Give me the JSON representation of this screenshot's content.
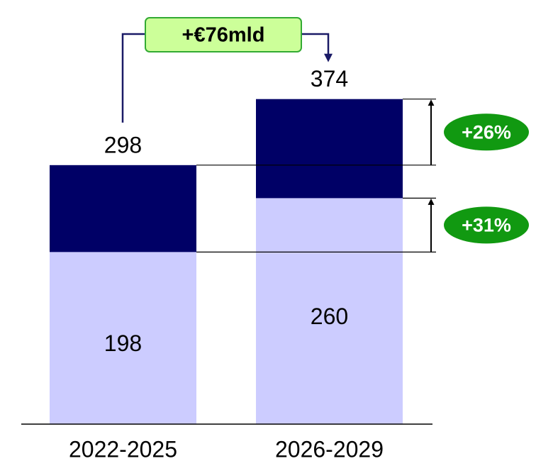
{
  "chart_data": {
    "type": "stacked-bar",
    "categories": [
      "2022-2025",
      "2026-2029"
    ],
    "series": [
      {
        "color": "#ccccff",
        "values": [
          198,
          260
        ]
      },
      {
        "color": "#000066",
        "values": [
          100,
          114
        ]
      }
    ],
    "totals": [
      298,
      374
    ],
    "ylim": [
      0,
      488
    ],
    "annotations": {
      "difference": "+€76mld",
      "top_growth": "+26%",
      "bottom_growth": "+31%"
    }
  }
}
